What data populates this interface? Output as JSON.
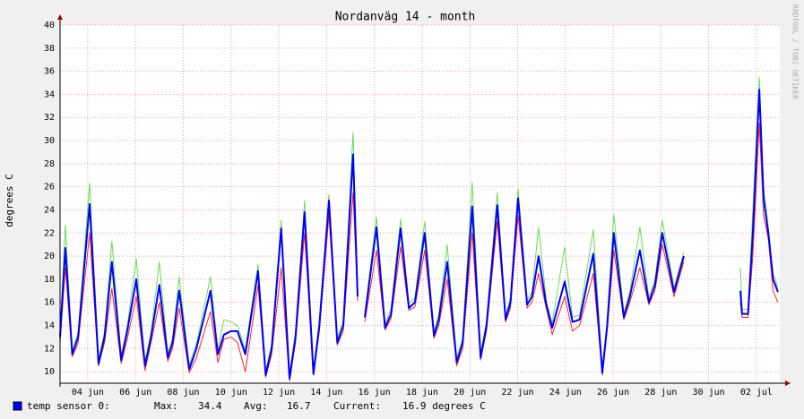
{
  "chart_data": {
    "type": "line",
    "title": "Nordanväg 14 - month",
    "y_label": "degrees C",
    "watermark": "RRDTOOL / TOBI OETIKER",
    "x": [
      2.84,
      3.06,
      3.35,
      3.6,
      4.08,
      4.45,
      4.7,
      5.01,
      5.4,
      5.65,
      6.03,
      6.4,
      6.65,
      7.0,
      7.35,
      7.55,
      7.83,
      8.25,
      8.55,
      9.14,
      9.45,
      9.7,
      10.0,
      10.27,
      10.6,
      11.13,
      11.45,
      11.7,
      12.1,
      12.45,
      12.7,
      13.08,
      13.45,
      13.7,
      14.1,
      14.45,
      14.7,
      15.11,
      15.3,
      15.45,
      15.6,
      16.09,
      16.45,
      16.7,
      17.1,
      17.45,
      17.7,
      18.11,
      18.5,
      18.7,
      19.05,
      19.45,
      19.7,
      20.1,
      20.45,
      20.7,
      21.15,
      21.5,
      21.7,
      22.02,
      22.4,
      22.6,
      22.88,
      23.2,
      23.45,
      23.97,
      24.3,
      24.6,
      25.17,
      25.55,
      25.75,
      26.03,
      26.45,
      26.7,
      27.12,
      27.5,
      27.75,
      28.06,
      28.55,
      28.96,
      29.5,
      31.33,
      31.4,
      31.65,
      31.85,
      32.12,
      32.3,
      32.5,
      32.7,
      32.9
    ],
    "series": [
      {
        "color": "#66dd55",
        "width": 1,
        "values": [
          13.4,
          22.7,
          11.9,
          13.4,
          26.3,
          11.1,
          13.4,
          21.3,
          11.4,
          13.9,
          19.8,
          10.9,
          13.4,
          19.5,
          11.6,
          12.9,
          18.2,
          10.6,
          12.4,
          18.2,
          11.9,
          14.5,
          14.3,
          14,
          11.9,
          19.3,
          10.1,
          12.4,
          23.1,
          9.8,
          13.4,
          24.8,
          10.2,
          14.4,
          25.3,
          12.9,
          14.4,
          30.7,
          17,
          null,
          15.1,
          23.4,
          14.2,
          15.4,
          23.2,
          15.9,
          16.4,
          23,
          13.5,
          14.9,
          21,
          11.2,
          12.9,
          26.4,
          11.6,
          14.4,
          25.5,
          14.9,
          16.4,
          25.8,
          16.2,
          16.9,
          22.5,
          16.2,
          14.2,
          20.8,
          14.7,
          14.9,
          22.3,
          10.3,
          14.4,
          23.6,
          15.1,
          16.9,
          22.5,
          16.4,
          17.9,
          23.1,
          17.3,
          20.3,
          null,
          19,
          15.4,
          15.4,
          24,
          35.5,
          26,
          22.5,
          18.5,
          17.3
        ]
      },
      {
        "color": "#ff2222",
        "width": 1,
        "values": [
          12.5,
          19,
          11.3,
          12.5,
          22,
          10.5,
          12.5,
          17.2,
          10.7,
          12.8,
          16.5,
          10.1,
          12.5,
          16,
          10.9,
          12,
          15.5,
          9.9,
          11.2,
          15.2,
          10.8,
          12.8,
          13,
          12.5,
          10,
          17.5,
          9.5,
          11.5,
          19,
          9.2,
          12.5,
          22,
          9.7,
          13.5,
          23.5,
          12.3,
          13.5,
          25.5,
          16.1,
          null,
          14.3,
          20.5,
          13.6,
          14.6,
          20.8,
          15.3,
          15.6,
          20.5,
          12.9,
          14,
          18,
          10.5,
          12,
          22,
          11,
          13.5,
          23,
          14.3,
          15.5,
          23.5,
          15.5,
          16,
          18.5,
          15.5,
          13.2,
          16.5,
          13.5,
          14,
          18.5,
          9.7,
          13.5,
          20.5,
          14.5,
          16,
          19,
          15.8,
          17,
          21,
          16.5,
          19.5,
          null,
          16,
          14.7,
          14.7,
          20,
          31.5,
          23.5,
          21.5,
          17,
          16
        ]
      },
      {
        "name": "temp sensor 0:",
        "color": "#0000ff",
        "width": 2,
        "values": [
          13,
          20.7,
          11.5,
          13,
          24.5,
          10.7,
          13,
          19.5,
          11,
          13.5,
          18,
          10.5,
          13,
          17.5,
          11.2,
          12.5,
          17,
          10.2,
          12,
          17,
          11.5,
          13.2,
          13.5,
          13.5,
          11.5,
          18.7,
          9.7,
          12,
          22.4,
          9.4,
          13,
          23.8,
          9.8,
          14,
          24.8,
          12.5,
          14,
          28.8,
          16.5,
          null,
          14.7,
          22.5,
          13.8,
          15,
          22.4,
          15.5,
          16,
          22,
          13.1,
          14.5,
          19.5,
          10.8,
          12.5,
          24.3,
          11.2,
          14,
          24.4,
          14.5,
          16,
          25,
          15.8,
          16.5,
          20,
          15.8,
          13.8,
          17.8,
          14.3,
          14.5,
          20.2,
          9.9,
          14,
          22,
          14.7,
          16.5,
          20.5,
          16,
          17.5,
          22,
          16.9,
          20,
          null,
          17,
          15,
          15,
          22,
          34.4,
          25,
          22,
          18,
          16.9
        ]
      }
    ],
    "legend_stats": [
      {
        "label": "Max:",
        "value": "34.4"
      },
      {
        "label": "Avg:",
        "value": "16.7"
      },
      {
        "label": "Current:",
        "value": "16.9 degrees C"
      }
    ],
    "xlim": [
      2.84,
      32.98
    ],
    "xticks": [
      {
        "value": 4,
        "label": "04 jun"
      },
      {
        "value": 6,
        "label": "06 jun"
      },
      {
        "value": 8,
        "label": "08 jun"
      },
      {
        "value": 10,
        "label": "10 jun"
      },
      {
        "value": 12,
        "label": "12 jun"
      },
      {
        "value": 14,
        "label": "14 jun"
      },
      {
        "value": 16,
        "label": "16 jun"
      },
      {
        "value": 18,
        "label": "18 jun"
      },
      {
        "value": 20,
        "label": "20 jun"
      },
      {
        "value": 22,
        "label": "22 jun"
      },
      {
        "value": 24,
        "label": "24 jun"
      },
      {
        "value": 26,
        "label": "26 jun"
      },
      {
        "value": 28,
        "label": "28 jun"
      },
      {
        "value": 30,
        "label": "30 jun"
      },
      {
        "value": 32,
        "label": "02 jul"
      }
    ],
    "ylim": [
      9,
      40
    ],
    "yticks": [
      10,
      12,
      14,
      16,
      18,
      20,
      22,
      24,
      26,
      28,
      30,
      32,
      34,
      36,
      38,
      40
    ],
    "grid": true
  }
}
